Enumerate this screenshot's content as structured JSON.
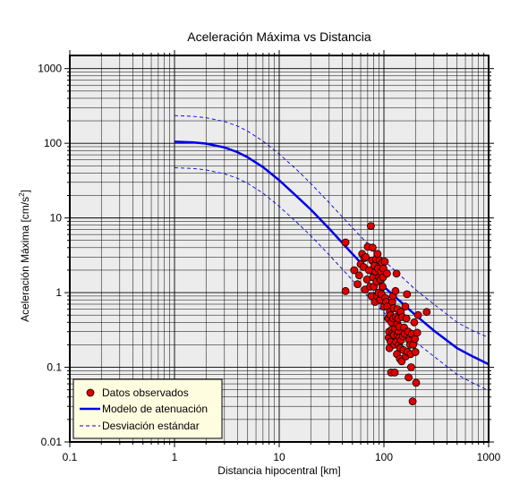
{
  "chart_data": {
    "type": "scatter",
    "title": "Aceleración Máxima vs Distancia",
    "xlabel": "Distancia hipocentral [km]",
    "ylabel_main": "Aceleración Máxima [cm/s",
    "ylabel_sup": "2",
    "ylabel_end": "]",
    "xscale": "log",
    "yscale": "log",
    "xlim": [
      0.1,
      1000
    ],
    "ylim": [
      0.01,
      1500
    ],
    "grid": true,
    "x_ticks": [
      "0.1",
      "1",
      "10",
      "100",
      "1000"
    ],
    "y_ticks": [
      "0.01",
      "0.1",
      "1",
      "10",
      "100",
      "1000"
    ],
    "x_tick_values": [
      0.1,
      1,
      10,
      100,
      1000
    ],
    "y_tick_values": [
      0.01,
      0.1,
      1,
      10,
      100,
      1000
    ],
    "legend": {
      "placement": "bottom-left",
      "entries": [
        "Datos observados",
        "Modelo de atenuación",
        "Desviación estándar"
      ]
    },
    "colors": {
      "points": "#e00000",
      "model": "#0000e6",
      "stddev": "#0000e6",
      "plot_background": "#ececec",
      "legend_background": "#fffde0"
    },
    "series": [
      {
        "name": "Datos observados",
        "type": "scatter",
        "points": [
          [
            43,
            1.05
          ],
          [
            43,
            4.7
          ],
          [
            52,
            2.0
          ],
          [
            56,
            1.3
          ],
          [
            58,
            1.7
          ],
          [
            60,
            2.4
          ],
          [
            62,
            3.3
          ],
          [
            64,
            2.2
          ],
          [
            65,
            2.9
          ],
          [
            66,
            1.1
          ],
          [
            67,
            3.0
          ],
          [
            69,
            1.5
          ],
          [
            70,
            4.1
          ],
          [
            72,
            2.0
          ],
          [
            74,
            1.2
          ],
          [
            75,
            7.8
          ],
          [
            76,
            0.9
          ],
          [
            77,
            2.7
          ],
          [
            78,
            4.0
          ],
          [
            79,
            1.6
          ],
          [
            80,
            1.2
          ],
          [
            81,
            2.3
          ],
          [
            82,
            0.75
          ],
          [
            83,
            1.9
          ],
          [
            84,
            2.8
          ],
          [
            85,
            1.4
          ],
          [
            86,
            0.9
          ],
          [
            87,
            3.3
          ],
          [
            88,
            2.1
          ],
          [
            89,
            1.0
          ],
          [
            90,
            1.6
          ],
          [
            91,
            2.7
          ],
          [
            92,
            0.8
          ],
          [
            93,
            1.5
          ],
          [
            94,
            1.9
          ],
          [
            95,
            0.95
          ],
          [
            96,
            2.5
          ],
          [
            97,
            1.2
          ],
          [
            98,
            1.6
          ],
          [
            99,
            2.1
          ],
          [
            100,
            0.65
          ],
          [
            102,
            2.6
          ],
          [
            103,
            0.85
          ],
          [
            105,
            0.75
          ],
          [
            107,
            1.8
          ],
          [
            108,
            0.65
          ],
          [
            110,
            0.45
          ],
          [
            111,
            0.25
          ],
          [
            112,
            0.3
          ],
          [
            113,
            0.18
          ],
          [
            114,
            0.55
          ],
          [
            115,
            0.5
          ],
          [
            116,
            0.22
          ],
          [
            117,
            0.085
          ],
          [
            118,
            0.4
          ],
          [
            119,
            0.32
          ],
          [
            120,
            0.75
          ],
          [
            121,
            0.28
          ],
          [
            122,
            0.9
          ],
          [
            123,
            0.45
          ],
          [
            124,
            0.62
          ],
          [
            125,
            0.27
          ],
          [
            126,
            0.2
          ],
          [
            127,
            0.085
          ],
          [
            128,
            0.33
          ],
          [
            129,
            1.05
          ],
          [
            130,
            0.47
          ],
          [
            131,
            0.22
          ],
          [
            132,
            1.8
          ],
          [
            133,
            0.15
          ],
          [
            134,
            0.38
          ],
          [
            135,
            0.6
          ],
          [
            136,
            0.27
          ],
          [
            137,
            0.45
          ],
          [
            138,
            0.3
          ],
          [
            139,
            0.2
          ],
          [
            140,
            0.35
          ],
          [
            141,
            0.25
          ],
          [
            142,
            0.13
          ],
          [
            143,
            0.18
          ],
          [
            145,
            0.55
          ],
          [
            146,
            0.23
          ],
          [
            148,
            0.12
          ],
          [
            150,
            0.47
          ],
          [
            152,
            0.26
          ],
          [
            154,
            0.17
          ],
          [
            156,
            0.34
          ],
          [
            158,
            0.28
          ],
          [
            160,
            0.65
          ],
          [
            162,
            0.14
          ],
          [
            164,
            0.45
          ],
          [
            166,
            0.95
          ],
          [
            168,
            0.16
          ],
          [
            170,
            0.3
          ],
          [
            172,
            0.073
          ],
          [
            175,
            0.23
          ],
          [
            178,
            0.2
          ],
          [
            180,
            0.15
          ],
          [
            182,
            0.1
          ],
          [
            185,
            0.28
          ],
          [
            188,
            0.035
          ],
          [
            190,
            0.2
          ],
          [
            195,
            0.4
          ],
          [
            198,
            0.24
          ],
          [
            200,
            0.16
          ],
          [
            203,
            0.062
          ],
          [
            208,
            0.29
          ],
          [
            212,
            0.5
          ],
          [
            256,
            0.55
          ]
        ]
      },
      {
        "name": "Modelo de atenuación",
        "type": "line",
        "x": [
          1,
          1.5,
          2,
          3,
          4,
          5,
          7,
          10,
          15,
          20,
          30,
          50,
          70,
          100,
          150,
          200,
          300,
          500,
          700,
          1000
        ],
        "y": [
          105,
          103,
          99,
          88,
          76,
          65,
          48,
          32,
          19,
          13,
          7.2,
          3.3,
          2.0,
          1.2,
          0.72,
          0.5,
          0.31,
          0.18,
          0.14,
          0.11
        ]
      },
      {
        "name": "Desviación estándar",
        "type": "line",
        "dashed": true,
        "bands": [
          {
            "x": [
              1,
              1.5,
              2,
              3,
              4,
              5,
              7,
              10,
              15,
              20,
              30,
              50,
              70,
              100,
              150,
              200,
              300,
              500,
              700,
              1000
            ],
            "y": [
              235,
              230,
              220,
              196,
              170,
              145,
              107,
              72,
              43,
              29,
              16,
              7.4,
              4.5,
              2.7,
              1.6,
              1.1,
              0.7,
              0.4,
              0.31,
              0.25
            ]
          },
          {
            "x": [
              1,
              1.5,
              2,
              3,
              4,
              5,
              7,
              10,
              15,
              20,
              30,
              50,
              70,
              100,
              150,
              200,
              300,
              500,
              700,
              1000
            ],
            "y": [
              47,
              46,
              44,
              39,
              34,
              29,
              21.5,
              14.3,
              8.5,
              5.8,
              3.2,
              1.47,
              0.9,
              0.54,
              0.32,
              0.22,
              0.14,
              0.08,
              0.062,
              0.049
            ]
          }
        ]
      }
    ]
  }
}
